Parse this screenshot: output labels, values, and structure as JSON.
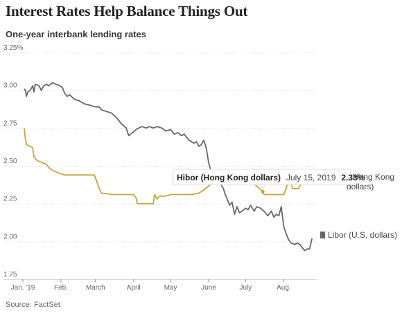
{
  "title": "Interest Rates Help Balance Things Out",
  "subtitle": "One-year interbank lending rates",
  "source": "Source: FactSet",
  "colors": {
    "hibor": "#c2a53f",
    "libor": "#666666",
    "grid": "#d9d9d9"
  },
  "chart_data": {
    "type": "line",
    "title": "Interest Rates Help Balance Things Out",
    "subtitle": "One-year interbank lending rates",
    "x_type": "date",
    "xlim": [
      "2019-01-01",
      "2019-08-25"
    ],
    "ylim": [
      1.75,
      3.25
    ],
    "yticks": [
      3.25,
      3.0,
      2.75,
      2.5,
      2.25,
      2.0,
      1.75
    ],
    "ytick_labels": [
      "3.25%",
      "3.00",
      "2.75",
      "2.50",
      "2.25",
      "2.00",
      "1.75"
    ],
    "xticks": [
      "2019-01-01",
      "2019-02-01",
      "2019-03-01",
      "2019-04-01",
      "2019-05-01",
      "2019-06-01",
      "2019-07-01",
      "2019-08-01"
    ],
    "xtick_labels": [
      "Jan. '19",
      "Feb.",
      "March",
      "April",
      "May",
      "June",
      "July",
      "Aug."
    ],
    "grid": true,
    "series": [
      {
        "name": "Hong Kong dollars",
        "label_lines": [
          "Hong Kong",
          "dollars)"
        ],
        "color": "#c2a53f",
        "points": [
          [
            "2019-01-02",
            2.75
          ],
          [
            "2019-01-03",
            2.68
          ],
          [
            "2019-01-04",
            2.64
          ],
          [
            "2019-01-07",
            2.63
          ],
          [
            "2019-01-09",
            2.62
          ],
          [
            "2019-01-10",
            2.56
          ],
          [
            "2019-01-12",
            2.54
          ],
          [
            "2019-01-14",
            2.53
          ],
          [
            "2019-01-17",
            2.52
          ],
          [
            "2019-01-20",
            2.51
          ],
          [
            "2019-01-22",
            2.49
          ],
          [
            "2019-01-25",
            2.47
          ],
          [
            "2019-01-28",
            2.46
          ],
          [
            "2019-01-31",
            2.45
          ],
          [
            "2019-02-04",
            2.44
          ],
          [
            "2019-02-10",
            2.44
          ],
          [
            "2019-02-20",
            2.44
          ],
          [
            "2019-02-28",
            2.44
          ],
          [
            "2019-03-02",
            2.4
          ],
          [
            "2019-03-04",
            2.35
          ],
          [
            "2019-03-06",
            2.32
          ],
          [
            "2019-03-15",
            2.31
          ],
          [
            "2019-03-25",
            2.31
          ],
          [
            "2019-04-01",
            2.31
          ],
          [
            "2019-04-03",
            2.29
          ],
          [
            "2019-04-04",
            2.25
          ],
          [
            "2019-04-15",
            2.25
          ],
          [
            "2019-04-17",
            2.25
          ],
          [
            "2019-04-18",
            2.31
          ],
          [
            "2019-04-20",
            2.28
          ],
          [
            "2019-04-22",
            2.3
          ],
          [
            "2019-04-27",
            2.3
          ],
          [
            "2019-05-01",
            2.31
          ],
          [
            "2019-05-10",
            2.31
          ],
          [
            "2019-05-18",
            2.31
          ],
          [
            "2019-05-24",
            2.32
          ],
          [
            "2019-05-28",
            2.34
          ],
          [
            "2019-05-31",
            2.36
          ],
          [
            "2019-06-03",
            2.38
          ],
          [
            "2019-06-06",
            2.39
          ],
          [
            "2019-06-10",
            2.4
          ],
          [
            "2019-06-18",
            2.41
          ],
          [
            "2019-06-26",
            2.41
          ],
          [
            "2019-07-03",
            2.41
          ],
          [
            "2019-07-08",
            2.38
          ],
          [
            "2019-07-11",
            2.36
          ],
          [
            "2019-07-15",
            2.33
          ],
          [
            "2019-07-16",
            2.31
          ],
          [
            "2019-07-22",
            2.31
          ],
          [
            "2019-07-30",
            2.31
          ],
          [
            "2019-08-01",
            2.31
          ],
          [
            "2019-08-03",
            2.35
          ],
          [
            "2019-08-05",
            2.42
          ],
          [
            "2019-08-07",
            2.39
          ],
          [
            "2019-08-08",
            2.35
          ],
          [
            "2019-08-13",
            2.35
          ],
          [
            "2019-08-15",
            2.38
          ],
          [
            "2019-08-16",
            2.42
          ]
        ]
      },
      {
        "name": "Libor (U.S. dollars)",
        "color": "#666666",
        "points": [
          [
            "2019-01-02",
            3.01
          ],
          [
            "2019-01-03",
            3.0
          ],
          [
            "2019-01-04",
            2.96
          ],
          [
            "2019-01-05",
            2.99
          ],
          [
            "2019-01-07",
            3.0
          ],
          [
            "2019-01-09",
            3.03
          ],
          [
            "2019-01-10",
            2.99
          ],
          [
            "2019-01-11",
            3.04
          ],
          [
            "2019-01-14",
            3.03
          ],
          [
            "2019-01-16",
            3.0
          ],
          [
            "2019-01-18",
            3.03
          ],
          [
            "2019-01-20",
            3.04
          ],
          [
            "2019-01-22",
            3.03
          ],
          [
            "2019-01-25",
            3.05
          ],
          [
            "2019-01-28",
            3.04
          ],
          [
            "2019-01-31",
            3.03
          ],
          [
            "2019-02-02",
            3.02
          ],
          [
            "2019-02-04",
            2.98
          ],
          [
            "2019-02-06",
            2.96
          ],
          [
            "2019-02-08",
            2.97
          ],
          [
            "2019-02-12",
            2.94
          ],
          [
            "2019-02-16",
            2.93
          ],
          [
            "2019-02-20",
            2.91
          ],
          [
            "2019-02-25",
            2.9
          ],
          [
            "2019-03-01",
            2.89
          ],
          [
            "2019-03-04",
            2.89
          ],
          [
            "2019-03-06",
            2.87
          ],
          [
            "2019-03-10",
            2.86
          ],
          [
            "2019-03-14",
            2.85
          ],
          [
            "2019-03-18",
            2.82
          ],
          [
            "2019-03-22",
            2.78
          ],
          [
            "2019-03-26",
            2.75
          ],
          [
            "2019-03-28",
            2.7
          ],
          [
            "2019-03-31",
            2.72
          ],
          [
            "2019-04-03",
            2.74
          ],
          [
            "2019-04-05",
            2.75
          ],
          [
            "2019-04-08",
            2.76
          ],
          [
            "2019-04-11",
            2.75
          ],
          [
            "2019-04-14",
            2.76
          ],
          [
            "2019-04-17",
            2.75
          ],
          [
            "2019-04-20",
            2.76
          ],
          [
            "2019-04-24",
            2.75
          ],
          [
            "2019-04-27",
            2.73
          ],
          [
            "2019-05-01",
            2.74
          ],
          [
            "2019-05-04",
            2.71
          ],
          [
            "2019-05-07",
            2.72
          ],
          [
            "2019-05-10",
            2.7
          ],
          [
            "2019-05-12",
            2.71
          ],
          [
            "2019-05-16",
            2.67
          ],
          [
            "2019-05-20",
            2.65
          ],
          [
            "2019-05-22",
            2.66
          ],
          [
            "2019-05-24",
            2.63
          ],
          [
            "2019-05-26",
            2.64
          ],
          [
            "2019-05-28",
            2.67
          ],
          [
            "2019-05-30",
            2.62
          ],
          [
            "2019-06-01",
            2.52
          ],
          [
            "2019-06-03",
            2.46
          ],
          [
            "2019-06-06",
            2.42
          ],
          [
            "2019-06-10",
            2.39
          ],
          [
            "2019-06-13",
            2.35
          ],
          [
            "2019-06-14",
            2.32
          ],
          [
            "2019-06-16",
            2.28
          ],
          [
            "2019-06-18",
            2.24
          ],
          [
            "2019-06-20",
            2.26
          ],
          [
            "2019-06-22",
            2.18
          ],
          [
            "2019-06-24",
            2.23
          ],
          [
            "2019-06-26",
            2.19
          ],
          [
            "2019-06-28",
            2.2
          ],
          [
            "2019-07-01",
            2.22
          ],
          [
            "2019-07-03",
            2.21
          ],
          [
            "2019-07-05",
            2.24
          ],
          [
            "2019-07-08",
            2.2
          ],
          [
            "2019-07-10",
            2.23
          ],
          [
            "2019-07-13",
            2.22
          ],
          [
            "2019-07-16",
            2.2
          ],
          [
            "2019-07-19",
            2.17
          ],
          [
            "2019-07-22",
            2.2
          ],
          [
            "2019-07-24",
            2.16
          ],
          [
            "2019-07-26",
            2.18
          ],
          [
            "2019-07-28",
            2.17
          ],
          [
            "2019-07-30",
            2.23
          ],
          [
            "2019-08-01",
            2.1
          ],
          [
            "2019-08-03",
            2.05
          ],
          [
            "2019-08-05",
            2.01
          ],
          [
            "2019-08-07",
            1.99
          ],
          [
            "2019-08-10",
            1.98
          ],
          [
            "2019-08-12",
            1.99
          ],
          [
            "2019-08-14",
            1.98
          ],
          [
            "2019-08-16",
            1.96
          ],
          [
            "2019-08-18",
            1.94
          ],
          [
            "2019-08-20",
            1.95
          ],
          [
            "2019-08-22",
            1.95
          ],
          [
            "2019-08-24",
            2.02
          ]
        ]
      }
    ],
    "annotations": [
      {
        "series_name": "Hibor (Hong Kong dollars)",
        "date_label": "July 15, 2019",
        "value_label": "2.33%",
        "x": "2019-07-15",
        "y": 2.33
      }
    ]
  }
}
